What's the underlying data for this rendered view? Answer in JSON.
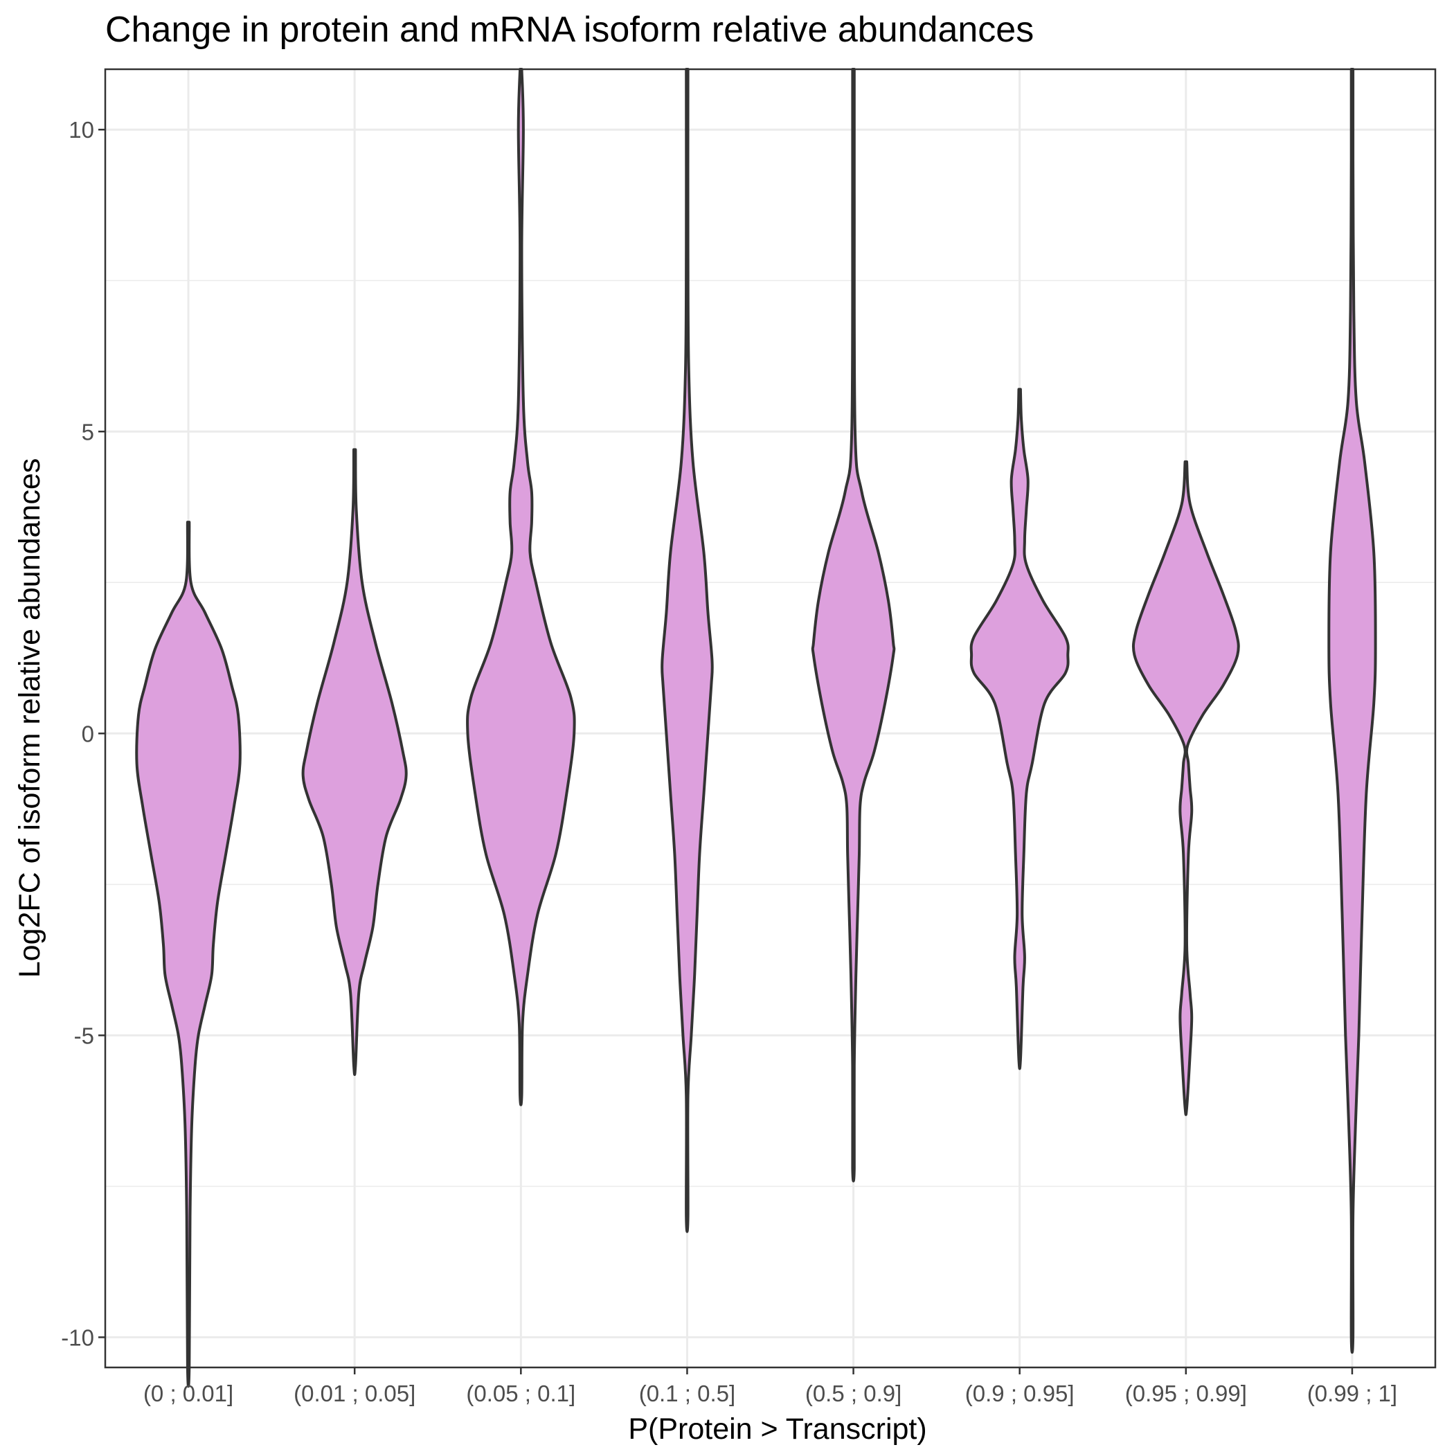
{
  "chart_data": {
    "type": "violin",
    "title": "Change in protein and mRNA isoform relative abundances",
    "xlabel": "P(Protein > Transcript)",
    "ylabel": "Log2FC of isoform relative abundances",
    "ylim": [
      -10.5,
      11.0
    ],
    "yticks": [
      -10,
      -5,
      0,
      5,
      10
    ],
    "ytick_labels": [
      "-10",
      "-5",
      "0",
      "5",
      "10"
    ],
    "grid": true,
    "fill_color": "#dda0dd",
    "outline_color": "#333333",
    "categories": [
      "(0 ; 0.01]",
      "(0.01 ; 0.05]",
      "(0.05 ; 0.1]",
      "(0.1 ; 0.5]",
      "(0.5 ; 0.9]",
      "(0.9 ; 0.95]",
      "(0.95 ; 0.99]",
      "(0.99 ; 1]"
    ],
    "series": [
      {
        "category": "(0 ; 0.01]",
        "profile": [
          [
            3.5,
            0
          ],
          [
            2.5,
            0.03
          ],
          [
            2.0,
            0.2
          ],
          [
            1.4,
            0.4
          ],
          [
            0.8,
            0.52
          ],
          [
            0.3,
            0.6
          ],
          [
            -0.5,
            0.62
          ],
          [
            -1.2,
            0.55
          ],
          [
            -2.0,
            0.45
          ],
          [
            -2.8,
            0.35
          ],
          [
            -3.5,
            0.3
          ],
          [
            -4.0,
            0.28
          ],
          [
            -4.5,
            0.2
          ],
          [
            -5.0,
            0.12
          ],
          [
            -5.5,
            0.08
          ],
          [
            -6.5,
            0.04
          ],
          [
            -8.0,
            0.02
          ],
          [
            -10.5,
            0
          ]
        ]
      },
      {
        "category": "(0.01 ; 0.05]",
        "profile": [
          [
            4.7,
            0
          ],
          [
            3.7,
            0.02
          ],
          [
            2.5,
            0.09
          ],
          [
            1.5,
            0.25
          ],
          [
            0.5,
            0.45
          ],
          [
            -0.3,
            0.58
          ],
          [
            -0.7,
            0.62
          ],
          [
            -1.1,
            0.55
          ],
          [
            -1.7,
            0.38
          ],
          [
            -2.5,
            0.28
          ],
          [
            -3.2,
            0.22
          ],
          [
            -3.8,
            0.12
          ],
          [
            -4.3,
            0.05
          ],
          [
            -5.5,
            0
          ]
        ]
      },
      {
        "category": "(0.05 ; 0.1]",
        "profile": [
          [
            11.0,
            0
          ],
          [
            10.0,
            0.03
          ],
          [
            8.0,
            0.01
          ],
          [
            5.5,
            0.03
          ],
          [
            4.5,
            0.08
          ],
          [
            4.0,
            0.13
          ],
          [
            3.5,
            0.13
          ],
          [
            3.0,
            0.11
          ],
          [
            2.5,
            0.18
          ],
          [
            1.5,
            0.36
          ],
          [
            0.6,
            0.6
          ],
          [
            0.0,
            0.64
          ],
          [
            -1.0,
            0.55
          ],
          [
            -2.0,
            0.42
          ],
          [
            -3.0,
            0.2
          ],
          [
            -4.0,
            0.08
          ],
          [
            -4.8,
            0.02
          ],
          [
            -6.0,
            0
          ]
        ]
      },
      {
        "category": "(0.1 ; 0.5]",
        "profile": [
          [
            11.0,
            0
          ],
          [
            8.0,
            0.01
          ],
          [
            6.0,
            0.02
          ],
          [
            4.5,
            0.07
          ],
          [
            3.0,
            0.2
          ],
          [
            2.0,
            0.25
          ],
          [
            1.2,
            0.3
          ],
          [
            0.8,
            0.29
          ],
          [
            0.0,
            0.25
          ],
          [
            -1.0,
            0.2
          ],
          [
            -2.0,
            0.15
          ],
          [
            -3.0,
            0.12
          ],
          [
            -4.0,
            0.09
          ],
          [
            -5.0,
            0.05
          ],
          [
            -6.0,
            0.01
          ],
          [
            -8.0,
            0
          ]
        ]
      },
      {
        "category": "(0.5 ; 0.9]",
        "profile": [
          [
            11.0,
            0
          ],
          [
            9.0,
            0.01
          ],
          [
            5.0,
            0.02
          ],
          [
            4.0,
            0.1
          ],
          [
            3.0,
            0.3
          ],
          [
            2.2,
            0.42
          ],
          [
            1.5,
            0.48
          ],
          [
            1.3,
            0.48
          ],
          [
            0.5,
            0.38
          ],
          [
            -0.3,
            0.25
          ],
          [
            -0.8,
            0.13
          ],
          [
            -1.2,
            0.08
          ],
          [
            -2.0,
            0.07
          ],
          [
            -3.0,
            0.05
          ],
          [
            -4.0,
            0.03
          ],
          [
            -5.5,
            0.01
          ],
          [
            -7.2,
            0
          ]
        ]
      },
      {
        "category": "(0.9 ; 0.95]",
        "profile": [
          [
            5.7,
            0
          ],
          [
            5.2,
            0.02
          ],
          [
            4.7,
            0.05
          ],
          [
            4.2,
            0.1
          ],
          [
            3.7,
            0.08
          ],
          [
            3.2,
            0.06
          ],
          [
            2.8,
            0.08
          ],
          [
            2.2,
            0.28
          ],
          [
            1.6,
            0.55
          ],
          [
            1.3,
            0.58
          ],
          [
            1.0,
            0.55
          ],
          [
            0.5,
            0.3
          ],
          [
            -0.5,
            0.15
          ],
          [
            -1.0,
            0.08
          ],
          [
            -2.0,
            0.05
          ],
          [
            -3.0,
            0.03
          ],
          [
            -3.7,
            0.06
          ],
          [
            -4.2,
            0.04
          ],
          [
            -5.4,
            0
          ]
        ]
      },
      {
        "category": "(0.95 ; 0.99]",
        "profile": [
          [
            4.5,
            0
          ],
          [
            3.8,
            0.05
          ],
          [
            3.0,
            0.25
          ],
          [
            2.3,
            0.45
          ],
          [
            1.7,
            0.6
          ],
          [
            1.3,
            0.62
          ],
          [
            0.8,
            0.45
          ],
          [
            0.3,
            0.2
          ],
          [
            -0.2,
            0.02
          ],
          [
            -0.5,
            0.03
          ],
          [
            -0.9,
            0.05
          ],
          [
            -1.3,
            0.07
          ],
          [
            -2.0,
            0.03
          ],
          [
            -3.5,
            0.01
          ],
          [
            -4.3,
            0.05
          ],
          [
            -4.7,
            0.07
          ],
          [
            -5.3,
            0.05
          ],
          [
            -6.2,
            0
          ]
        ]
      },
      {
        "category": "(0.99 ; 1]",
        "profile": [
          [
            11.0,
            0
          ],
          [
            9.5,
            0.01
          ],
          [
            7.0,
            0.02
          ],
          [
            5.5,
            0.05
          ],
          [
            4.5,
            0.15
          ],
          [
            3.0,
            0.26
          ],
          [
            1.5,
            0.28
          ],
          [
            0.5,
            0.26
          ],
          [
            -1.0,
            0.17
          ],
          [
            -3.0,
            0.12
          ],
          [
            -5.0,
            0.08
          ],
          [
            -6.5,
            0.04
          ],
          [
            -8.0,
            0.01
          ],
          [
            -10.0,
            0
          ]
        ]
      }
    ]
  }
}
